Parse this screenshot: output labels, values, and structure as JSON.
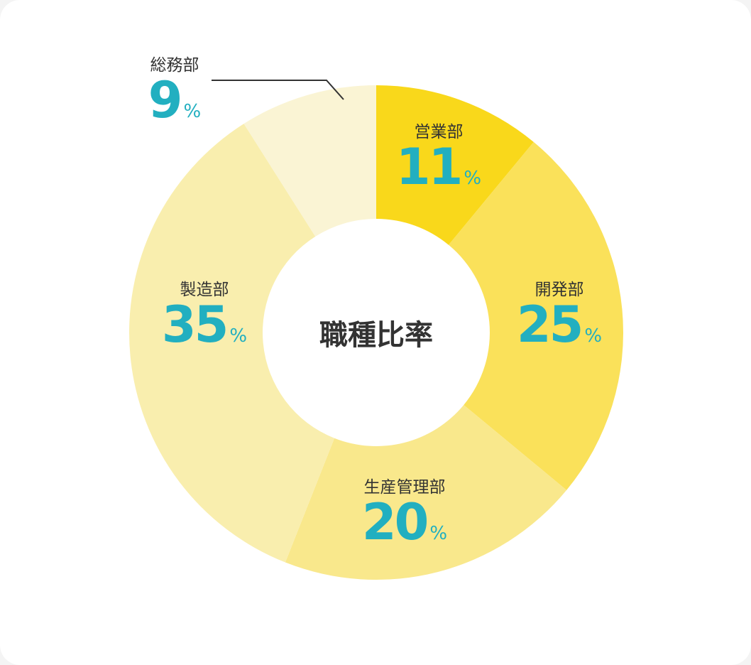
{
  "chart_data": {
    "type": "pie",
    "title": "職種比率",
    "donut": true,
    "unit": "%",
    "slices": [
      {
        "label": "営業部",
        "value": 11,
        "color": "#f9d81b"
      },
      {
        "label": "開発部",
        "value": 25,
        "color": "#fae15a"
      },
      {
        "label": "生産管理部",
        "value": 20,
        "color": "#f9e88c"
      },
      {
        "label": "製造部",
        "value": 35,
        "color": "#f9eeae"
      },
      {
        "label": "総務部",
        "value": 9,
        "color": "#faf4d4"
      }
    ],
    "value_color": "#22afc0",
    "start": "top",
    "direction": "clockwise"
  }
}
